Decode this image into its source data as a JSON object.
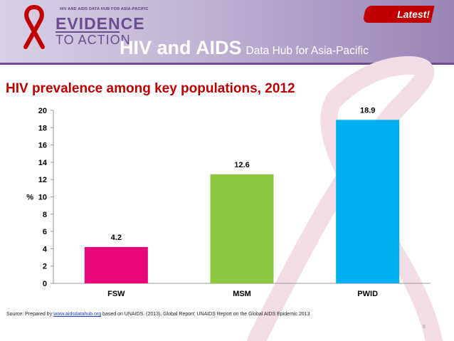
{
  "header": {
    "badge": "Latest!",
    "title_main": "HIV and AIDS",
    "title_sub": "Data Hub for Asia-Pacific",
    "logo": {
      "tagline": "HIV AND AIDS DATA HUB FOR ASIA-PACIFIC",
      "line1": "EVIDENCE",
      "line2": "TO ACTION"
    }
  },
  "chart_data": {
    "type": "bar",
    "title": "HIV prevalence among key populations, 2012",
    "ylabel": "%",
    "xlabel": "",
    "categories": [
      "FSW",
      "MSM",
      "PWID"
    ],
    "values": [
      4.2,
      12.6,
      18.9
    ],
    "value_labels": [
      "4.2",
      "12.6",
      "18.9"
    ],
    "colors": [
      "#e8067a",
      "#8dc63f",
      "#00b0f0"
    ],
    "ylim": [
      0,
      20
    ],
    "yticks": [
      0,
      2,
      4,
      6,
      8,
      10,
      12,
      14,
      16,
      18,
      20
    ],
    "grid": false,
    "legend": "none"
  },
  "footer": {
    "source_prefix": "Source: Prepared by",
    "source_link": "www.aidsdatahub.org",
    "source_suffix": "based on UNAIDS. (2013). Global Report: UNAIDS Report on the Global AIDS Epidemic 2013",
    "page_number": "8"
  },
  "colors": {
    "accent": "#c00000",
    "brand_purple": "#6b4b91"
  }
}
